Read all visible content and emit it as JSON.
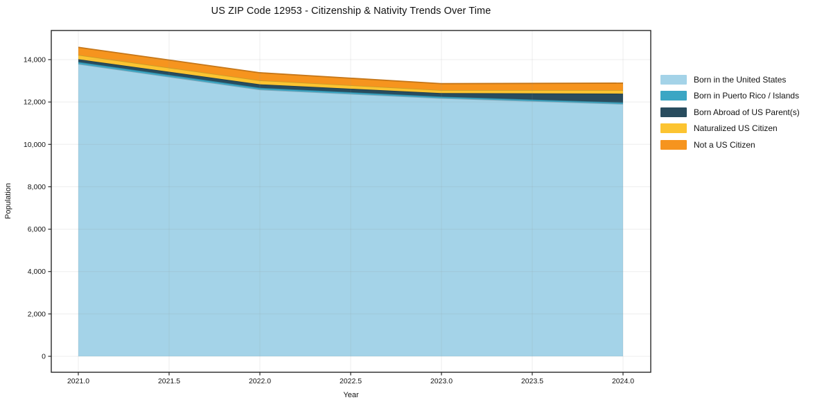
{
  "chart_data": {
    "type": "area",
    "stacked": true,
    "title": "US ZIP Code 12953 - Citizenship & Nativity Trends Over Time",
    "xlabel": "Year",
    "ylabel": "Population",
    "x": [
      2021,
      2022,
      2023,
      2024
    ],
    "series": [
      {
        "name": "Born in the United States",
        "color": "#a4d3e8",
        "values": [
          13795,
          12585,
          12180,
          11905
        ]
      },
      {
        "name": "Born in Puerto Rico / Islands",
        "color": "#3ba6c4",
        "values": [
          95,
          85,
          75,
          75
        ]
      },
      {
        "name": "Born Abroad of US Parent(s)",
        "color": "#284c5e",
        "values": [
          130,
          165,
          165,
          415
        ]
      },
      {
        "name": "Naturalized US Citizen",
        "color": "#fcc431",
        "values": [
          200,
          185,
          140,
          165
        ]
      },
      {
        "name": "Not a US Citizen",
        "color": "#f6941e",
        "values": [
          360,
          360,
          305,
          330
        ]
      }
    ],
    "totals": [
      14580,
      13380,
      12865,
      12890
    ],
    "xticks": {
      "values": [
        2021,
        2021.5,
        2022,
        2022.5,
        2023,
        2023.5,
        2024
      ],
      "labels": [
        "2021.0",
        "2021.5",
        "2022.0",
        "2022.5",
        "2023.0",
        "2023.5",
        "2024.0"
      ]
    },
    "yticks": {
      "values": [
        0,
        2000,
        4000,
        6000,
        8000,
        10000,
        12000,
        14000
      ],
      "labels": [
        "0",
        "2,000",
        "4,000",
        "6,000",
        "8,000",
        "10,000",
        "12,000",
        "14,000"
      ]
    },
    "xlim": [
      2020.85,
      2024.15
    ],
    "ylim": [
      -750,
      15300
    ],
    "grid": true,
    "legend_position": "right-outside"
  },
  "colors": {
    "background": "#ffffff",
    "gridline": "#8c8c8c",
    "spine": "#262626",
    "text": "#111111"
  }
}
